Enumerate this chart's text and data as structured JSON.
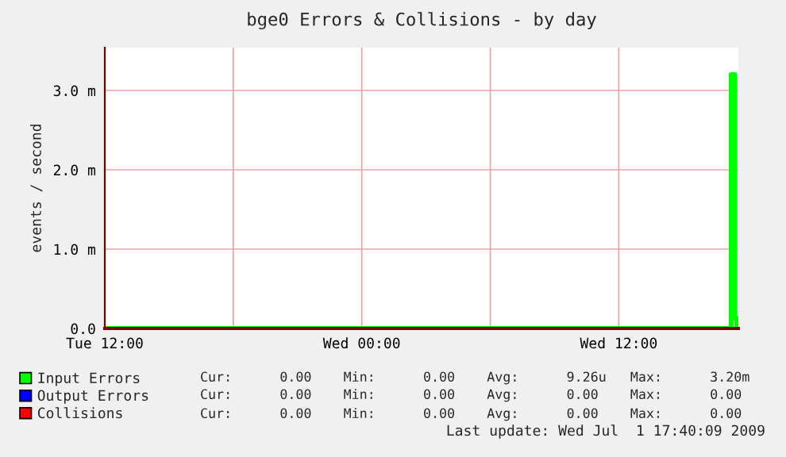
{
  "chart_data": {
    "type": "step",
    "title": "bge0 Errors & Collisions - by day",
    "ylabel": "events / second",
    "x": [
      "2009-06-30T12:00",
      "2009-07-01T17:10",
      "2009-07-01T17:15",
      "2009-07-01T17:25",
      "2009-07-01T17:30",
      "2009-07-01T17:35"
    ],
    "series": [
      {
        "name": "Input Errors",
        "color": "#00ff00",
        "values": [
          0,
          0,
          3.2,
          0.13,
          0,
          0
        ]
      },
      {
        "name": "Output Errors",
        "color": "#0000ff",
        "values": [
          null,
          null,
          null,
          null,
          null,
          null
        ]
      },
      {
        "name": "Collisions",
        "color": "#ff0000",
        "values": [
          null,
          null,
          null,
          null,
          null,
          null
        ]
      }
    ],
    "xlim": [
      "2009-06-30T12:00",
      "2009-07-01T17:35"
    ],
    "xticks": [
      {
        "value": "2009-06-30T12:00",
        "label": "Tue 12:00"
      },
      {
        "value": "2009-06-30T18:00",
        "label": null
      },
      {
        "value": "2009-07-01T00:00",
        "label": "Wed 00:00"
      },
      {
        "value": "2009-07-01T06:00",
        "label": null
      },
      {
        "value": "2009-07-01T12:00",
        "label": "Wed 12:00"
      }
    ],
    "ylim": [
      0,
      3.54
    ],
    "yticks": [
      {
        "value": 0,
        "label": "0.0"
      },
      {
        "value": 1,
        "label": "1.0 m"
      },
      {
        "value": 2,
        "label": "2.0 m"
      },
      {
        "value": 3,
        "label": "3.0 m"
      }
    ],
    "grid": true,
    "legend": "bottom left",
    "annotations": [
      "Cur:      0.00    Min:      0.00    Avg:      9.26u   Max:      3.20m",
      "Cur:      0.00    Min:      0.00    Avg:      0.00    Max:      0.00",
      "Cur:      0.00    Min:      0.00    Avg:      0.00    Max:      0.00",
      "Last update: Wed Jul  1 17:40:09 2009"
    ]
  }
}
